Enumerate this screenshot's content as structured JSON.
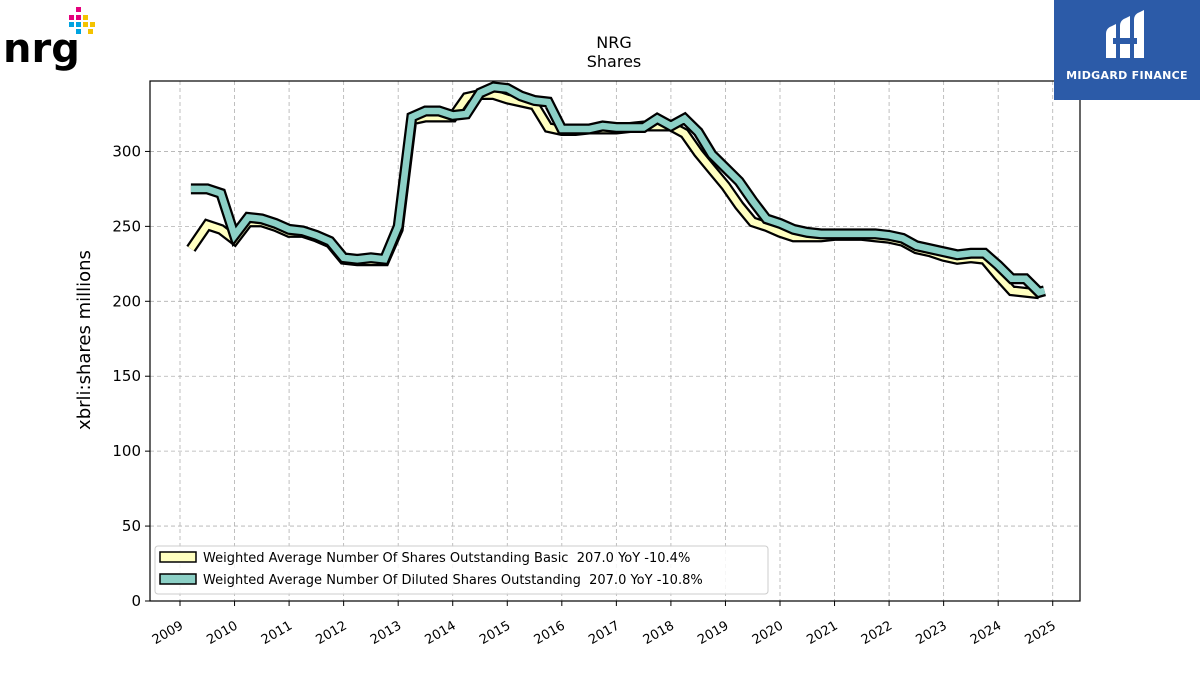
{
  "branding": {
    "company_logo_text": "nrg",
    "publisher_logo_text": "MIDGARD FINANCE"
  },
  "colors": {
    "basic_fill": "#ffffc0",
    "diluted_fill": "#8cd0c6",
    "outline": "#000000",
    "grid": "#b0b0b0",
    "publisher_bg": "#2c5ba8"
  },
  "chart_data": {
    "type": "line",
    "title": "NRG",
    "subtitle": "Shares",
    "ylabel": "xbrli:shares millions",
    "xlabel": "",
    "ylim": [
      0,
      347
    ],
    "xlim": [
      2008.45,
      2025.5
    ],
    "yticks": [
      0,
      50,
      100,
      150,
      200,
      250,
      300
    ],
    "xticks": [
      "2009",
      "2010",
      "2011",
      "2012",
      "2013",
      "2014",
      "2015",
      "2016",
      "2017",
      "2018",
      "2019",
      "2020",
      "2021",
      "2022",
      "2023",
      "2024",
      "2025"
    ],
    "grid": true,
    "legend_position": "lower-left",
    "series": [
      {
        "name": "Weighted Average Number Of Shares Outstanding Basic",
        "legend_label": "Weighted Average Number Of Shares Outstanding Basic  207.0 YoY -10.4%",
        "x": [
          2009.2,
          2009.5,
          2009.75,
          2010.0,
          2010.25,
          2010.5,
          2010.75,
          2011.0,
          2011.25,
          2011.5,
          2011.75,
          2012.0,
          2012.25,
          2012.5,
          2012.75,
          2013.0,
          2013.25,
          2013.5,
          2013.75,
          2014.0,
          2014.25,
          2014.5,
          2014.75,
          2015.0,
          2015.25,
          2015.5,
          2015.75,
          2016.0,
          2016.25,
          2016.5,
          2016.75,
          2017.0,
          2017.25,
          2017.5,
          2017.75,
          2018.0,
          2018.25,
          2018.5,
          2018.75,
          2019.0,
          2019.25,
          2019.5,
          2019.75,
          2020.0,
          2020.25,
          2020.5,
          2020.75,
          2021.0,
          2021.25,
          2021.5,
          2021.75,
          2022.0,
          2022.25,
          2022.5,
          2022.75,
          2023.0,
          2023.25,
          2023.5,
          2023.75,
          2024.0,
          2024.25,
          2024.5,
          2024.75
        ],
        "values": [
          235,
          251,
          248,
          241,
          253,
          253,
          250,
          246,
          246,
          243,
          239,
          228,
          227,
          227,
          227,
          248,
          321,
          323,
          323,
          323,
          336,
          338,
          338,
          335,
          333,
          331,
          316,
          314,
          314,
          315,
          315,
          315,
          316,
          317,
          317,
          317,
          312,
          299,
          288,
          277,
          264,
          253,
          250,
          246,
          243,
          243,
          243,
          244,
          244,
          244,
          243,
          242,
          240,
          235,
          233,
          230,
          228,
          229,
          228,
          217,
          207,
          206,
          205
        ]
      },
      {
        "name": "Weighted Average Number Of Diluted Shares Outstanding",
        "legend_label": "Weighted Average Number Of Diluted Shares Outstanding  207.0 YoY -10.8%",
        "x": [
          2009.2,
          2009.5,
          2009.75,
          2010.0,
          2010.25,
          2010.5,
          2010.75,
          2011.0,
          2011.25,
          2011.5,
          2011.75,
          2012.0,
          2012.25,
          2012.5,
          2012.75,
          2013.0,
          2013.25,
          2013.5,
          2013.75,
          2014.0,
          2014.25,
          2014.5,
          2014.75,
          2015.0,
          2015.25,
          2015.5,
          2015.75,
          2016.0,
          2016.25,
          2016.5,
          2016.75,
          2017.0,
          2017.25,
          2017.5,
          2017.75,
          2018.0,
          2018.25,
          2018.5,
          2018.75,
          2019.0,
          2019.25,
          2019.5,
          2019.75,
          2020.0,
          2020.25,
          2020.5,
          2020.75,
          2021.0,
          2021.25,
          2021.5,
          2021.75,
          2022.0,
          2022.25,
          2022.5,
          2022.75,
          2023.0,
          2023.25,
          2023.5,
          2023.75,
          2024.0,
          2024.25,
          2024.5,
          2024.75,
          2024.85
        ],
        "values": [
          275,
          275,
          272,
          244,
          256,
          255,
          252,
          248,
          247,
          244,
          240,
          229,
          228,
          229,
          228,
          250,
          323,
          327,
          327,
          324,
          325,
          339,
          343,
          342,
          337,
          334,
          333,
          315,
          315,
          315,
          317,
          316,
          316,
          316,
          322,
          317,
          322,
          313,
          298,
          289,
          280,
          267,
          255,
          252,
          248,
          246,
          245,
          245,
          245,
          245,
          245,
          244,
          242,
          237,
          235,
          233,
          231,
          232,
          232,
          224,
          215,
          215,
          206,
          207
        ]
      }
    ]
  }
}
